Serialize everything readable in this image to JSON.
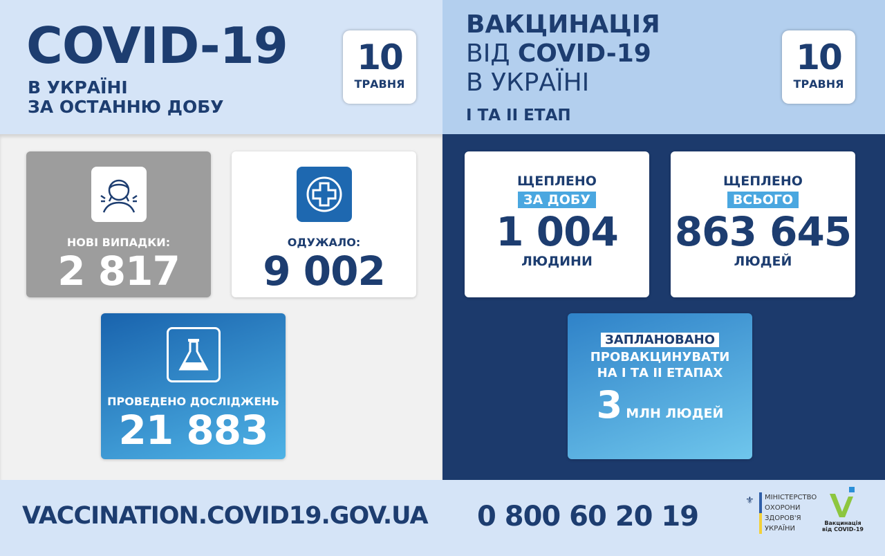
{
  "left_header": {
    "title": "COVID-19",
    "line1": "В УКРАЇНІ",
    "line2": "ЗА ОСТАННЮ ДОБУ",
    "date_day": "10",
    "date_month": "ТРАВНЯ"
  },
  "right_header": {
    "line1": "ВАКЦИНАЦІЯ",
    "line2_prefix": "ВІД ",
    "line2_bold": "COVID-19",
    "line3": "В УКРАЇНІ",
    "stage": "І ТА ІІ ЕТАП",
    "date_day": "10",
    "date_month": "ТРАВНЯ"
  },
  "stats": {
    "new_cases": {
      "label": "НОВІ ВИПАДКИ:",
      "value": "2 817",
      "icon": "sneezing-person-icon"
    },
    "recovered": {
      "label": "ОДУЖАЛО:",
      "value": "9 002",
      "icon": "medical-cross-icon"
    },
    "tests": {
      "label": "ПРОВЕДЕНО ДОСЛІДЖЕНЬ",
      "value": "21 883",
      "icon": "flask-icon"
    }
  },
  "vaccination": {
    "daily": {
      "title": "ЩЕПЛЕНО",
      "highlight": "ЗА ДОБУ",
      "value": "1 004",
      "unit": "ЛЮДИНИ"
    },
    "total": {
      "title": "ЩЕПЛЕНО",
      "highlight": "ВСЬОГО",
      "value": "863 645",
      "unit": "ЛЮДЕЙ"
    },
    "planned": {
      "highlight": "ЗАПЛАНОВАНО",
      "line1": "ПРОВАКЦИНУВАТИ",
      "line2": "НА І ТА ІІ ЕТАПАХ",
      "value": "3",
      "unit": "МЛН ЛЮДЕЙ"
    }
  },
  "footer": {
    "url": "VACCINATION.COVID19.GOV.UA",
    "phone": "0 800 60 20 19",
    "ministry_logo": [
      "МІНІСТЕРСТВО",
      "ОХОРОНИ",
      "ЗДОРОВ'Я",
      "УКРАЇНИ"
    ],
    "vaccination_logo": [
      "Вакцинація",
      "від COVID-19"
    ]
  },
  "colors": {
    "navy": "#1d3d70",
    "dark_panel": "#1c3a6c",
    "accent_blue": "#4aa7e0",
    "logo_green": "#8dc63f"
  }
}
